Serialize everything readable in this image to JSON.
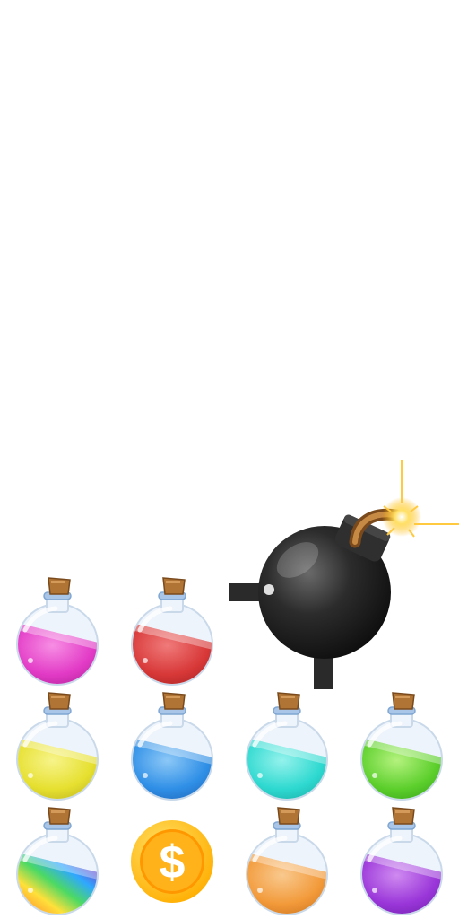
{
  "sprite_sheet": {
    "bomb": {
      "icon": "bomb-icon",
      "body_color": "#2a2a2a",
      "fuse_color": "#a8702e",
      "spark_color": "#ffd54a"
    },
    "coin": {
      "icon": "dollar-coin-icon",
      "symbol": "$",
      "color": "#ffb300",
      "inner_color": "#ff9800"
    },
    "potions": [
      {
        "name": "potion-pink",
        "liquid": "#e23bc6",
        "light": "#f78ee4",
        "dark": "#a91e8f"
      },
      {
        "name": "potion-red",
        "liquid": "#d83838",
        "light": "#f07a7a",
        "dark": "#a01f1f"
      },
      {
        "name": "potion-yellow",
        "liquid": "#e6e030",
        "light": "#f7f48a",
        "dark": "#b4a91c"
      },
      {
        "name": "potion-blue",
        "liquid": "#2f8fe6",
        "light": "#8cc8f7",
        "dark": "#1b5fb0"
      },
      {
        "name": "potion-cyan",
        "liquid": "#2ed9d0",
        "light": "#94f2ec",
        "dark": "#17a39b"
      },
      {
        "name": "potion-green",
        "liquid": "#5ccf2c",
        "light": "#b4f27e",
        "dark": "#2f9a16"
      },
      {
        "name": "potion-rainbow",
        "liquid": "rainbow",
        "light": "#ffffff",
        "dark": "#7a3cc9"
      },
      {
        "name": "potion-orange",
        "liquid": "#f29a3a",
        "light": "#f9c98e",
        "dark": "#c26a17"
      },
      {
        "name": "potion-purple",
        "liquid": "#9a36d9",
        "light": "#cf8af0",
        "dark": "#6a1ea5"
      }
    ]
  }
}
